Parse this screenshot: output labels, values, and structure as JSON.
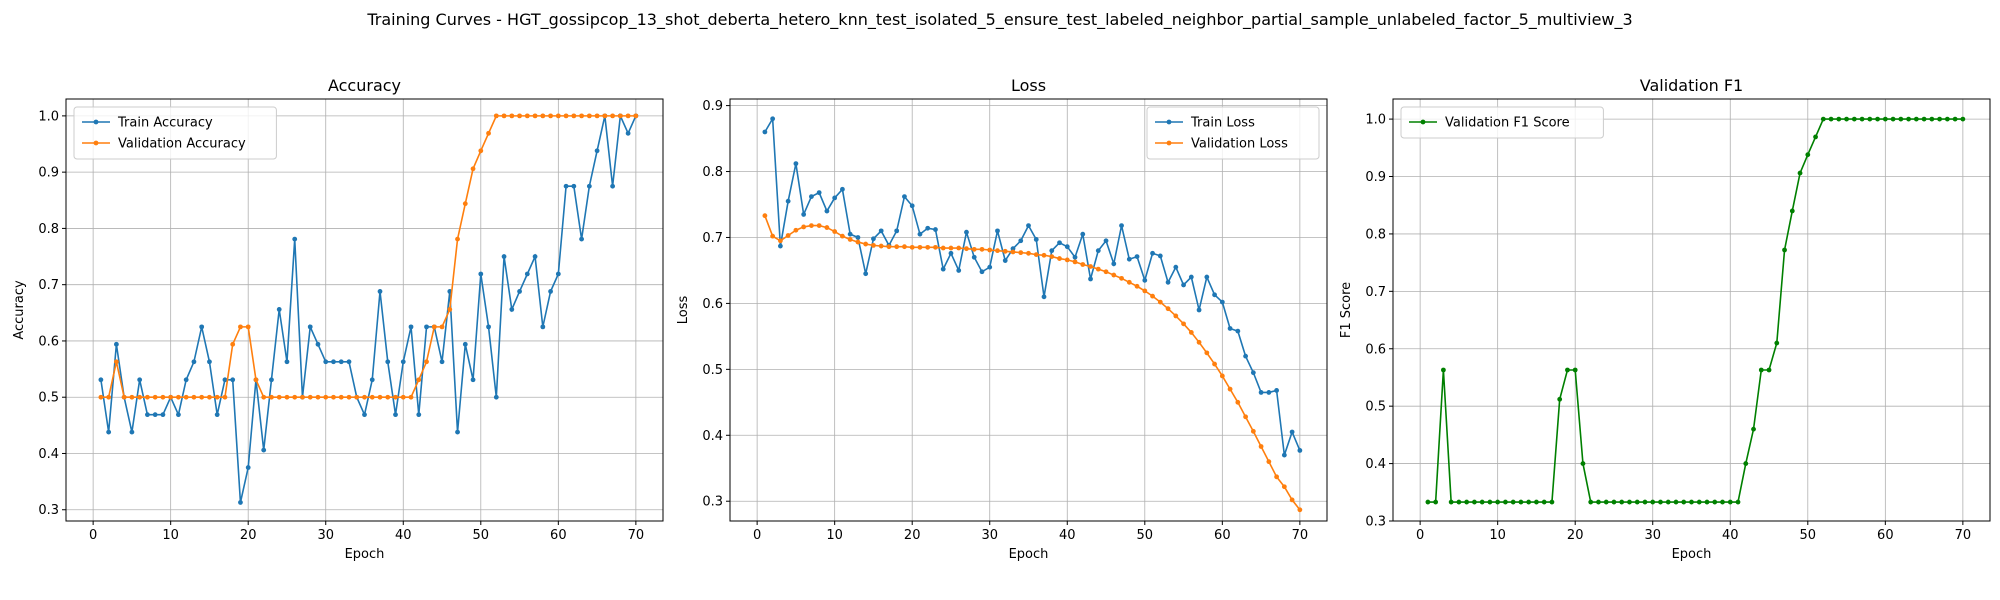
{
  "suptitle": "Training Curves - HGT_gossipcop_13_shot_deberta_hetero_knn_test_isolated_5_ensure_test_labeled_neighbor_partial_sample_unlabeled_factor_5_multiview_3",
  "chart_data": [
    {
      "type": "line",
      "title": "Accuracy",
      "xlabel": "Epoch",
      "ylabel": "Accuracy",
      "xlim": [
        -3.5,
        73.5
      ],
      "ylim": [
        0.28,
        1.03
      ],
      "xticks": [
        0,
        10,
        20,
        30,
        40,
        50,
        60,
        70
      ],
      "yticks": [
        0.3,
        0.4,
        0.5,
        0.6,
        0.7,
        0.8,
        0.9,
        1.0
      ],
      "ytick_labels": [
        "0.3",
        "0.4",
        "0.5",
        "0.6",
        "0.7",
        "0.8",
        "0.9",
        "1.0"
      ],
      "grid": true,
      "legend": "top-left",
      "series": [
        {
          "name": "Train Accuracy",
          "color": "#1f77b4",
          "values": [
            0.531,
            0.438,
            0.594,
            0.5,
            0.438,
            0.531,
            0.469,
            0.469,
            0.469,
            0.5,
            0.469,
            0.531,
            0.563,
            0.625,
            0.563,
            0.469,
            0.531,
            0.531,
            0.313,
            0.375,
            0.531,
            0.406,
            0.531,
            0.656,
            0.563,
            0.781,
            0.5,
            0.625,
            0.594,
            0.563,
            0.563,
            0.563,
            0.563,
            0.5,
            0.469,
            0.531,
            0.688,
            0.563,
            0.469,
            0.563,
            0.625,
            0.469,
            0.625,
            0.625,
            0.563,
            0.688,
            0.438,
            0.594,
            0.531,
            0.719,
            0.625,
            0.5,
            0.75,
            0.656,
            0.688,
            0.719,
            0.75,
            0.625,
            0.688,
            0.719,
            0.875,
            0.875,
            0.781,
            0.875,
            0.938,
            1.0,
            0.875,
            1.0,
            0.969,
            1.0
          ]
        },
        {
          "name": "Validation Accuracy",
          "color": "#ff7f0e",
          "values": [
            0.5,
            0.5,
            0.563,
            0.5,
            0.5,
            0.5,
            0.5,
            0.5,
            0.5,
            0.5,
            0.5,
            0.5,
            0.5,
            0.5,
            0.5,
            0.5,
            0.5,
            0.594,
            0.625,
            0.625,
            0.531,
            0.5,
            0.5,
            0.5,
            0.5,
            0.5,
            0.5,
            0.5,
            0.5,
            0.5,
            0.5,
            0.5,
            0.5,
            0.5,
            0.5,
            0.5,
            0.5,
            0.5,
            0.5,
            0.5,
            0.5,
            0.531,
            0.563,
            0.625,
            0.625,
            0.656,
            0.781,
            0.844,
            0.906,
            0.938,
            0.969,
            1.0,
            1.0,
            1.0,
            1.0,
            1.0,
            1.0,
            1.0,
            1.0,
            1.0,
            1.0,
            1.0,
            1.0,
            1.0,
            1.0,
            1.0,
            1.0,
            1.0,
            1.0,
            1.0
          ]
        }
      ]
    },
    {
      "type": "line",
      "title": "Loss",
      "xlabel": "Epoch",
      "ylabel": "Loss",
      "xlim": [
        -3.5,
        73.5
      ],
      "ylim": [
        0.27,
        0.91
      ],
      "xticks": [
        0,
        10,
        20,
        30,
        40,
        50,
        60,
        70
      ],
      "yticks": [
        0.3,
        0.4,
        0.5,
        0.6,
        0.7,
        0.8,
        0.9
      ],
      "ytick_labels": [
        "0.3",
        "0.4",
        "0.5",
        "0.6",
        "0.7",
        "0.8",
        "0.9"
      ],
      "grid": true,
      "legend": "top-right",
      "series": [
        {
          "name": "Train Loss",
          "color": "#1f77b4",
          "values": [
            0.86,
            0.88,
            0.687,
            0.755,
            0.812,
            0.735,
            0.762,
            0.768,
            0.74,
            0.76,
            0.773,
            0.705,
            0.7,
            0.645,
            0.698,
            0.71,
            0.688,
            0.71,
            0.762,
            0.748,
            0.705,
            0.714,
            0.712,
            0.652,
            0.676,
            0.65,
            0.708,
            0.67,
            0.648,
            0.655,
            0.71,
            0.665,
            0.683,
            0.695,
            0.718,
            0.697,
            0.61,
            0.68,
            0.692,
            0.686,
            0.67,
            0.705,
            0.637,
            0.68,
            0.695,
            0.66,
            0.718,
            0.667,
            0.671,
            0.635,
            0.676,
            0.672,
            0.632,
            0.655,
            0.628,
            0.64,
            0.59,
            0.64,
            0.613,
            0.602,
            0.562,
            0.558,
            0.52,
            0.495,
            0.465,
            0.465,
            0.468,
            0.37,
            0.405,
            0.377
          ]
        },
        {
          "name": "Validation Loss",
          "color": "#ff7f0e",
          "values": [
            0.733,
            0.702,
            0.695,
            0.703,
            0.711,
            0.716,
            0.718,
            0.718,
            0.715,
            0.709,
            0.702,
            0.697,
            0.693,
            0.69,
            0.688,
            0.687,
            0.686,
            0.686,
            0.686,
            0.685,
            0.685,
            0.685,
            0.685,
            0.684,
            0.684,
            0.684,
            0.683,
            0.682,
            0.682,
            0.681,
            0.68,
            0.679,
            0.678,
            0.677,
            0.676,
            0.674,
            0.673,
            0.671,
            0.668,
            0.666,
            0.663,
            0.659,
            0.656,
            0.652,
            0.648,
            0.643,
            0.638,
            0.632,
            0.626,
            0.619,
            0.611,
            0.602,
            0.592,
            0.581,
            0.569,
            0.556,
            0.541,
            0.525,
            0.508,
            0.49,
            0.47,
            0.45,
            0.428,
            0.406,
            0.383,
            0.36,
            0.337,
            0.322,
            0.302,
            0.287
          ]
        }
      ]
    },
    {
      "type": "line",
      "title": "Validation F1",
      "xlabel": "Epoch",
      "ylabel": "F1 Score",
      "xlim": [
        -3.5,
        73.5
      ],
      "ylim": [
        0.3,
        1.035
      ],
      "xticks": [
        0,
        10,
        20,
        30,
        40,
        50,
        60,
        70
      ],
      "yticks": [
        0.3,
        0.4,
        0.5,
        0.6,
        0.7,
        0.8,
        0.9,
        1.0
      ],
      "ytick_labels": [
        "0.3",
        "0.4",
        "0.5",
        "0.6",
        "0.7",
        "0.8",
        "0.9",
        "1.0"
      ],
      "grid": true,
      "legend": "top-left",
      "series": [
        {
          "name": "Validation F1 Score",
          "color": "#008000",
          "values": [
            0.333,
            0.333,
            0.563,
            0.333,
            0.333,
            0.333,
            0.333,
            0.333,
            0.333,
            0.333,
            0.333,
            0.333,
            0.333,
            0.333,
            0.333,
            0.333,
            0.333,
            0.512,
            0.563,
            0.563,
            0.4,
            0.333,
            0.333,
            0.333,
            0.333,
            0.333,
            0.333,
            0.333,
            0.333,
            0.333,
            0.333,
            0.333,
            0.333,
            0.333,
            0.333,
            0.333,
            0.333,
            0.333,
            0.333,
            0.333,
            0.333,
            0.4,
            0.46,
            0.563,
            0.563,
            0.61,
            0.772,
            0.84,
            0.906,
            0.938,
            0.969,
            1.0,
            1.0,
            1.0,
            1.0,
            1.0,
            1.0,
            1.0,
            1.0,
            1.0,
            1.0,
            1.0,
            1.0,
            1.0,
            1.0,
            1.0,
            1.0,
            1.0,
            1.0,
            1.0
          ]
        }
      ]
    }
  ]
}
